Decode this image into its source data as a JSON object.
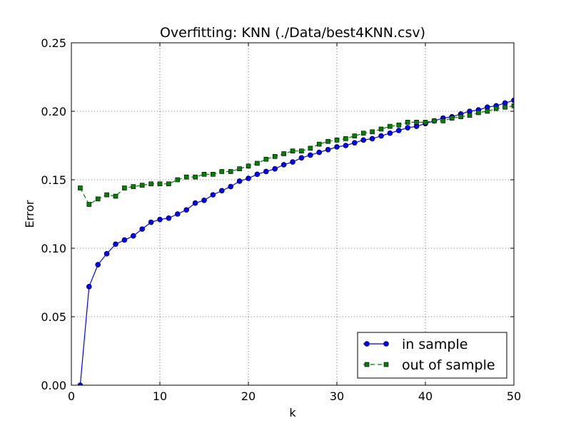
{
  "chart_data": {
    "type": "line",
    "title": "Overfitting: KNN (./Data/best4KNN.csv)",
    "xlabel": "k",
    "ylabel": "Error",
    "xlim": [
      0,
      50
    ],
    "ylim": [
      0,
      0.25
    ],
    "xticks": [
      0,
      10,
      20,
      30,
      40,
      50
    ],
    "xtick_labels": [
      "0",
      "10",
      "20",
      "30",
      "40",
      "50"
    ],
    "yticks": [
      0,
      0.05,
      0.1,
      0.15,
      0.2,
      0.25
    ],
    "ytick_labels": [
      "0.00",
      "0.05",
      "0.10",
      "0.15",
      "0.20",
      "0.25"
    ],
    "grid": true,
    "legend_position": "lower-right",
    "x": [
      1,
      2,
      3,
      4,
      5,
      6,
      7,
      8,
      9,
      10,
      11,
      12,
      13,
      14,
      15,
      16,
      17,
      18,
      19,
      20,
      21,
      22,
      23,
      24,
      25,
      26,
      27,
      28,
      29,
      30,
      31,
      32,
      33,
      34,
      35,
      36,
      37,
      38,
      39,
      40,
      41,
      42,
      43,
      44,
      45,
      46,
      47,
      48,
      49,
      50
    ],
    "series": [
      {
        "name": "in sample",
        "color": "#0000ff",
        "marker": "circle",
        "linestyle": "solid",
        "values": [
          0.0,
          0.072,
          0.088,
          0.096,
          0.103,
          0.106,
          0.109,
          0.114,
          0.119,
          0.121,
          0.122,
          0.125,
          0.128,
          0.133,
          0.135,
          0.139,
          0.142,
          0.145,
          0.149,
          0.151,
          0.154,
          0.156,
          0.158,
          0.161,
          0.163,
          0.166,
          0.168,
          0.17,
          0.172,
          0.174,
          0.175,
          0.177,
          0.179,
          0.18,
          0.182,
          0.184,
          0.186,
          0.188,
          0.189,
          0.191,
          0.193,
          0.195,
          0.196,
          0.198,
          0.2,
          0.201,
          0.203,
          0.204,
          0.206,
          0.208
        ]
      },
      {
        "name": "out of sample",
        "color": "#007f00",
        "marker": "square",
        "linestyle": "dashed",
        "values": [
          0.144,
          0.132,
          0.136,
          0.139,
          0.138,
          0.144,
          0.145,
          0.146,
          0.147,
          0.147,
          0.147,
          0.15,
          0.152,
          0.152,
          0.154,
          0.154,
          0.156,
          0.156,
          0.158,
          0.16,
          0.162,
          0.165,
          0.167,
          0.169,
          0.171,
          0.171,
          0.173,
          0.176,
          0.178,
          0.179,
          0.18,
          0.182,
          0.184,
          0.185,
          0.187,
          0.189,
          0.19,
          0.192,
          0.192,
          0.192,
          0.193,
          0.193,
          0.195,
          0.196,
          0.197,
          0.199,
          0.2,
          0.202,
          0.203,
          0.204
        ]
      }
    ]
  }
}
